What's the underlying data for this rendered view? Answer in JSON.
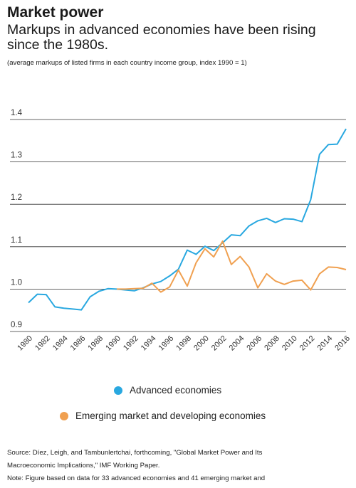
{
  "title": "Market power",
  "subtitle": "Markups in advanced economies have been rising since the 1980s.",
  "note": "(average markups of listed firms in each country income group, index 1990 = 1)",
  "colors": {
    "advanced": "#29a8e0",
    "emerging": "#f0a050",
    "grid": "#333333"
  },
  "chart_data": {
    "type": "line",
    "ylim": [
      0.9,
      1.4
    ],
    "yticks": [
      "0.9",
      "1.0",
      "1.1",
      "1.2",
      "1.3",
      "1.4"
    ],
    "xticks": [
      "1980",
      "1982",
      "1984",
      "1986",
      "1988",
      "1990",
      "1992",
      "1994",
      "1996",
      "1998",
      "2000",
      "2002",
      "2004",
      "2006",
      "2008",
      "2010",
      "2012",
      "2014",
      "2016"
    ],
    "legend_position": "bottom",
    "series": [
      {
        "name": "Advanced economies",
        "color_key": "advanced",
        "x": [
          1980,
          1981,
          1982,
          1983,
          1984,
          1985,
          1986,
          1987,
          1988,
          1989,
          1990,
          1991,
          1992,
          1993,
          1994,
          1995,
          1996,
          1997,
          1998,
          1999,
          2000,
          2001,
          2002,
          2003,
          2004,
          2005,
          2006,
          2007,
          2008,
          2009,
          2010,
          2011,
          2012,
          2013,
          2014,
          2015,
          2016
        ],
        "values": [
          0.968,
          0.988,
          0.987,
          0.958,
          0.955,
          0.953,
          0.951,
          0.982,
          0.995,
          1.001,
          1.0,
          0.998,
          0.996,
          1.003,
          1.012,
          1.018,
          1.031,
          1.047,
          1.092,
          1.082,
          1.101,
          1.091,
          1.109,
          1.128,
          1.126,
          1.149,
          1.161,
          1.167,
          1.157,
          1.166,
          1.165,
          1.159,
          1.211,
          1.318,
          1.341,
          1.342,
          1.378
        ]
      },
      {
        "name": "Emerging market and developing economies",
        "color_key": "emerging",
        "x": [
          1990,
          1991,
          1992,
          1993,
          1994,
          1995,
          1996,
          1997,
          1998,
          1999,
          2000,
          2001,
          2002,
          2003,
          2004,
          2005,
          2006,
          2007,
          2008,
          2009,
          2010,
          2011,
          2012,
          2013,
          2014,
          2015,
          2016
        ],
        "values": [
          1.0,
          1.0,
          1.001,
          1.002,
          1.014,
          0.993,
          1.005,
          1.045,
          1.007,
          1.062,
          1.095,
          1.076,
          1.113,
          1.058,
          1.077,
          1.052,
          1.003,
          1.036,
          1.019,
          1.011,
          1.019,
          1.021,
          0.998,
          1.036,
          1.052,
          1.051,
          1.046
        ]
      }
    ]
  },
  "source_lines": [
    "Source: Díez, Leigh, and Tambunlertchai, forthcoming, \"Global Market Power and Its",
    "Macroeconomic Implications,\" IMF Working Paper.",
    "Note: Figure based on data for 33 advanced economies and 41 emerging market and"
  ]
}
